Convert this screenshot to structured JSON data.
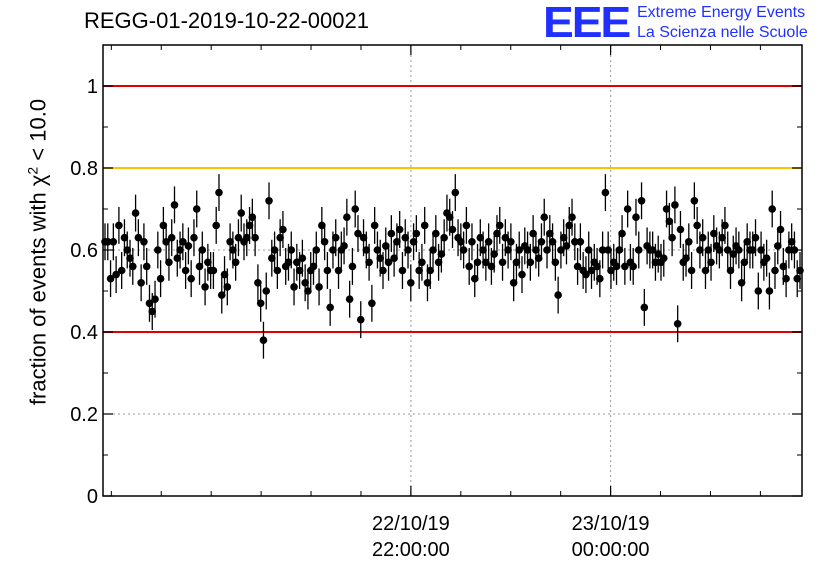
{
  "title": "REGG-01-2019-10-22-00021",
  "logo": {
    "mark": "EEE",
    "line1": "Extreme Energy Events",
    "line2": "La Scienza nelle Scuole"
  },
  "chart_data": {
    "type": "scatter",
    "title": "REGG-01-2019-10-22-00021",
    "ylabel": "fraction of events with χ² < 10.0",
    "ylabel_parts": {
      "prefix": "fraction of events with ",
      "symbol": "χ",
      "sup": "2",
      "suffix": " < 10.0"
    },
    "xlabel": "",
    "xlim": [
      "2019-10-22 18:55",
      "2019-10-23 01:55"
    ],
    "ylim": [
      0,
      1.1
    ],
    "yticks": [
      0,
      0.2,
      0.4,
      0.6,
      0.8,
      1
    ],
    "ytick_labels": [
      "0",
      "0.2",
      "0.4",
      "0.6",
      "0.8",
      "1"
    ],
    "xticks": [
      {
        "x": "2019-10-22 22:00",
        "date": "22/10/19",
        "time": "22:00:00"
      },
      {
        "x": "2019-10-23 00:00",
        "date": "23/10/19",
        "time": "00:00:00"
      }
    ],
    "grid": true,
    "reference_lines": [
      {
        "y": 1.0,
        "color": "#e00000"
      },
      {
        "y": 0.8,
        "color": "#ffc000"
      },
      {
        "y": 0.4,
        "color": "#e00000"
      }
    ],
    "error_bar_halfwidth": 0.045,
    "series": [
      {
        "marker_color": "#000000",
        "x_start": "2019-10-22 18:55",
        "x_end": "2019-10-23 01:55",
        "y": [
          0.62,
          0.62,
          0.53,
          0.62,
          0.54,
          0.66,
          0.55,
          0.63,
          0.6,
          0.58,
          0.56,
          0.69,
          0.63,
          0.52,
          0.62,
          0.56,
          0.47,
          0.45,
          0.48,
          0.6,
          0.53,
          0.66,
          0.62,
          0.57,
          0.63,
          0.71,
          0.58,
          0.6,
          0.62,
          0.55,
          0.61,
          0.53,
          0.63,
          0.7,
          0.56,
          0.6,
          0.51,
          0.57,
          0.55,
          0.55,
          0.66,
          0.74,
          0.49,
          0.54,
          0.51,
          0.62,
          0.6,
          0.57,
          0.63,
          0.69,
          0.62,
          0.63,
          0.66,
          0.68,
          0.63,
          0.52,
          0.47,
          0.38,
          0.5,
          0.72,
          0.58,
          0.6,
          0.55,
          0.63,
          0.65,
          0.56,
          0.57,
          0.6,
          0.51,
          0.57,
          0.55,
          0.58,
          0.52,
          0.5,
          0.55,
          0.56,
          0.6,
          0.51,
          0.66,
          0.62,
          0.55,
          0.46,
          0.6,
          0.63,
          0.55,
          0.6,
          0.61,
          0.68,
          0.48,
          0.56,
          0.7,
          0.64,
          0.43,
          0.63,
          0.6,
          0.57,
          0.47,
          0.66,
          0.6,
          0.58,
          0.55,
          0.61,
          0.57,
          0.64,
          0.58,
          0.62,
          0.65,
          0.55,
          0.63,
          0.6,
          0.52,
          0.62,
          0.64,
          0.55,
          0.57,
          0.66,
          0.52,
          0.55,
          0.6,
          0.64,
          0.57,
          0.59,
          0.63,
          0.69,
          0.68,
          0.65,
          0.74,
          0.63,
          0.62,
          0.6,
          0.66,
          0.56,
          0.62,
          0.53,
          0.57,
          0.63,
          0.6,
          0.57,
          0.62,
          0.56,
          0.59,
          0.64,
          0.66,
          0.57,
          0.63,
          0.6,
          0.62,
          0.52,
          0.57,
          0.6,
          0.54,
          0.61,
          0.6,
          0.57,
          0.64,
          0.6,
          0.58,
          0.62,
          0.68,
          0.6,
          0.64,
          0.62,
          0.57,
          0.49,
          0.6,
          0.63,
          0.61,
          0.66,
          0.68,
          0.62,
          0.56,
          0.62,
          0.55,
          0.54,
          0.6,
          0.55,
          0.57,
          0.56,
          0.53,
          0.6,
          0.74,
          0.6,
          0.55,
          0.57,
          0.56,
          0.6,
          0.64,
          0.56,
          0.7,
          0.57,
          0.56,
          0.68,
          0.6,
          0.72,
          0.46,
          0.61,
          0.6,
          0.6,
          0.57,
          0.59,
          0.57,
          0.58,
          0.7,
          0.67,
          0.63,
          0.71,
          0.42,
          0.65,
          0.57,
          0.58,
          0.62,
          0.55,
          0.72,
          0.66,
          0.6,
          0.63,
          0.55,
          0.6,
          0.57,
          0.64,
          0.61,
          0.6,
          0.63,
          0.66,
          0.6,
          0.55,
          0.59,
          0.61,
          0.6,
          0.52,
          0.57,
          0.62,
          0.6,
          0.6,
          0.63,
          0.5,
          0.6,
          0.57,
          0.58,
          0.5,
          0.7,
          0.55,
          0.61,
          0.65,
          0.56,
          0.53,
          0.6,
          0.62,
          0.6,
          0.53,
          0.55
        ]
      }
    ]
  }
}
